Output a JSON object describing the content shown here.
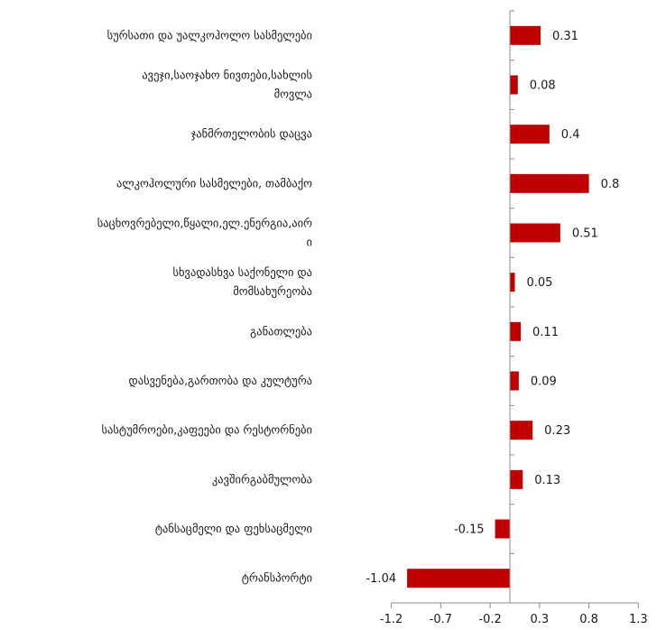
{
  "chart_data": {
    "type": "bar",
    "orientation": "horizontal",
    "categories": [
      [
        "სურსათი და უალკოჰოლო სასმელები"
      ],
      [
        "ავეჯი,საოჯახო ნივთები,სახლის",
        "მოვლა"
      ],
      [
        "ჯანმრთელობის დაცვა"
      ],
      [
        "ალკოჰოლური სასმელები, თამბაქო"
      ],
      [
        "საცხოვრებელი,წყალი,ელ.ენერგია,აირ",
        "ი"
      ],
      [
        "სხვადასხვა საქონელი და",
        "მომსახურეობა"
      ],
      [
        "განათლება"
      ],
      [
        "დასვენება,გართობა და კულტურა"
      ],
      [
        "სასტუმროები,კაფეები და რესტორნები"
      ],
      [
        "კავშირგაბმულობა"
      ],
      [
        "ტანსაცმელი და ფეხსაცმელი"
      ],
      [
        "ტრანსპორტი"
      ]
    ],
    "values": [
      0.31,
      0.08,
      0.4,
      0.8,
      0.51,
      0.05,
      0.11,
      0.09,
      0.23,
      0.13,
      -0.15,
      -1.04
    ],
    "value_labels": [
      "0.31",
      "0.08",
      "0.4",
      "0.8",
      "0.51",
      "0.05",
      "0.11",
      "0.09",
      "0.23",
      "0.13",
      "-0.15",
      "-1.04"
    ],
    "xlim": [
      -1.2,
      1.3
    ],
    "x_ticks": [
      -1.2,
      -0.7,
      -0.2,
      0.3,
      0.8,
      1.3
    ],
    "x_tick_labels": [
      "-1.2",
      "-0.7",
      "-0.2",
      "0.3",
      "0.8",
      "1.3"
    ],
    "bar_color": "#c00000",
    "axis_color": "#8c8c8c",
    "grid": false,
    "legend": "none",
    "title": "",
    "xlabel": "",
    "ylabel": ""
  }
}
